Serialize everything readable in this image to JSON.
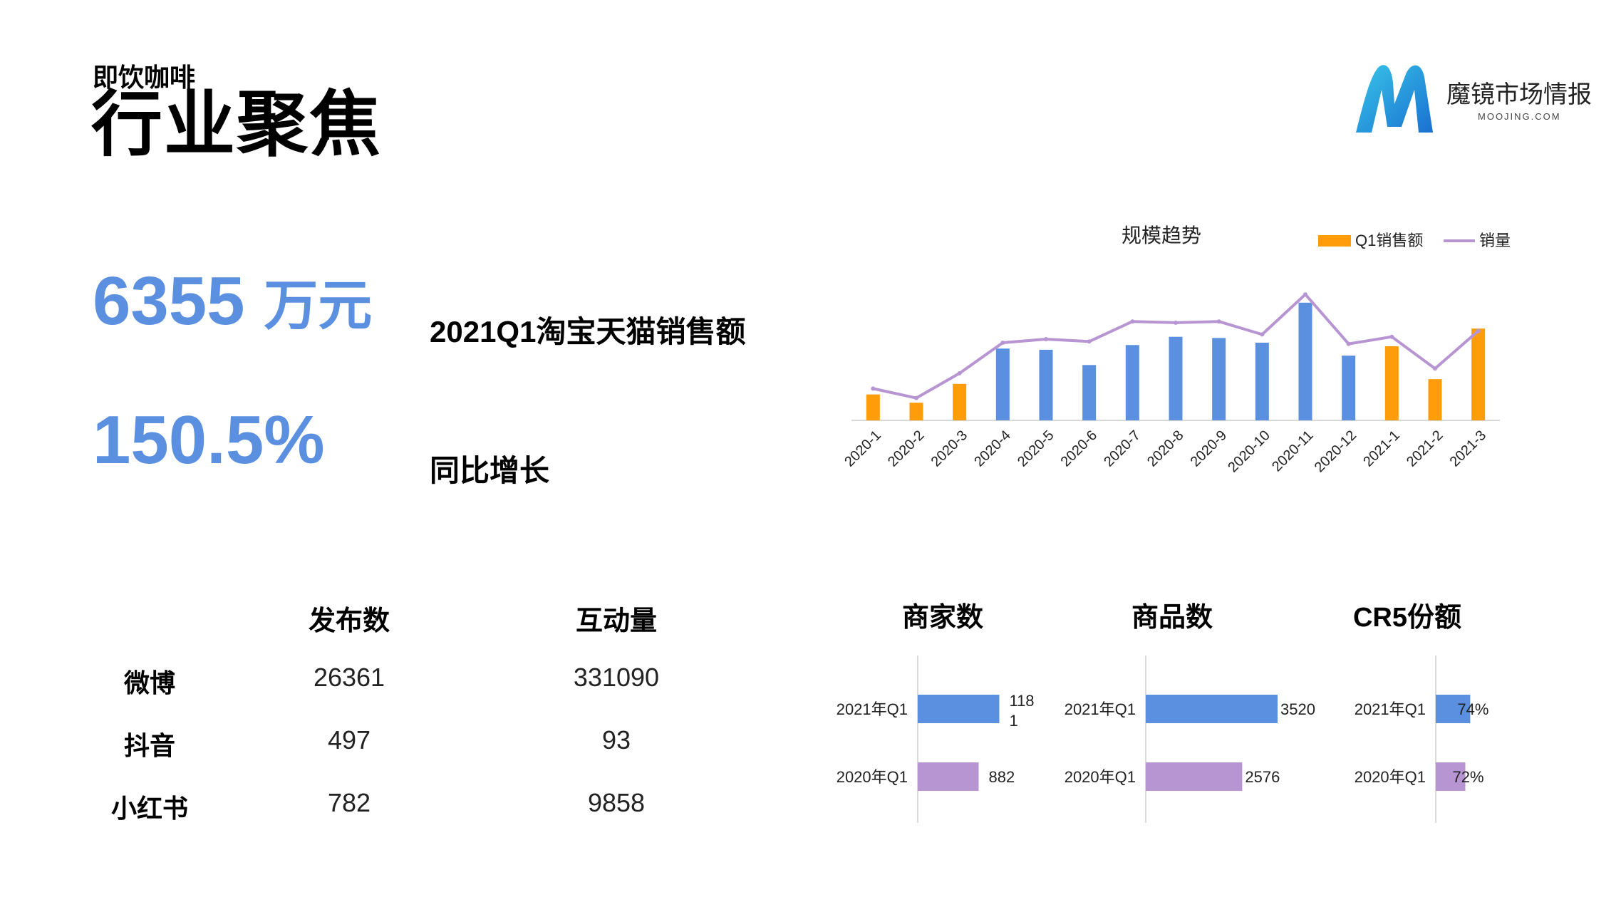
{
  "header": {
    "subtitle": "即饮咖啡",
    "title": "行业聚焦"
  },
  "logo": {
    "icon": "moojing-m-logo",
    "name": "魔镜市场情报",
    "domain": "MOOJING.COM"
  },
  "kpis": [
    {
      "value": "6355",
      "unit": "万元",
      "label": "2021Q1淘宝天猫销售额"
    },
    {
      "value": "150.5%",
      "unit": "",
      "label": "同比增长"
    }
  ],
  "social_table": {
    "headers": [
      "发布数",
      "互动量"
    ],
    "rows": [
      {
        "platform": "微博",
        "posts": "26361",
        "interactions": "331090"
      },
      {
        "platform": "抖音",
        "posts": "497",
        "interactions": "93"
      },
      {
        "platform": "小红书",
        "posts": "782",
        "interactions": "9858"
      }
    ]
  },
  "colors": {
    "accent_blue": "#5b8fe0",
    "orange": "#ff9c0a",
    "purple": "#b794d2",
    "axis": "#d9d9d9"
  },
  "chart_data": [
    {
      "type": "bar",
      "title": "规模趋势",
      "legend_position": "top-right",
      "categories": [
        "2020-1",
        "2020-2",
        "2020-3",
        "2020-4",
        "2020-5",
        "2020-6",
        "2020-7",
        "2020-8",
        "2020-9",
        "2020-10",
        "2020-11",
        "2020-12",
        "2021-1",
        "2021-2",
        "2021-3"
      ],
      "highlight_q1": [
        true,
        true,
        true,
        false,
        false,
        false,
        false,
        false,
        false,
        false,
        false,
        false,
        true,
        true,
        true
      ],
      "series": [
        {
          "name": "Q1销售额",
          "type": "bar",
          "values": [
            22,
            15,
            31,
            61,
            60,
            47,
            64,
            71,
            70,
            66,
            100,
            55,
            63,
            35,
            78
          ]
        },
        {
          "name": "销量",
          "type": "line",
          "values": [
            27,
            19,
            40,
            66,
            69,
            67,
            84,
            83,
            84,
            73,
            107,
            65,
            71,
            44,
            76
          ]
        }
      ],
      "ylim": [
        0,
        115
      ],
      "grid": false
    },
    {
      "type": "bar",
      "title": "商家数",
      "orientation": "horizontal",
      "categories": [
        "2021年Q1",
        "2020年Q1"
      ],
      "values": [
        1181,
        882
      ],
      "labels": [
        "118\n1",
        "882"
      ],
      "xlim": [
        0,
        1600
      ]
    },
    {
      "type": "bar",
      "title": "商品数",
      "orientation": "horizontal",
      "categories": [
        "2021年Q1",
        "2020年Q1"
      ],
      "values": [
        3520,
        2576
      ],
      "labels": [
        "3520",
        "2576"
      ],
      "xlim": [
        0,
        4600
      ]
    },
    {
      "type": "bar",
      "title": "CR5份额",
      "orientation": "horizontal",
      "categories": [
        "2021年Q1",
        "2020年Q1"
      ],
      "values": [
        74,
        72
      ],
      "labels": [
        "74%",
        "72%"
      ],
      "value_scale": [
        60,
        100
      ]
    }
  ]
}
